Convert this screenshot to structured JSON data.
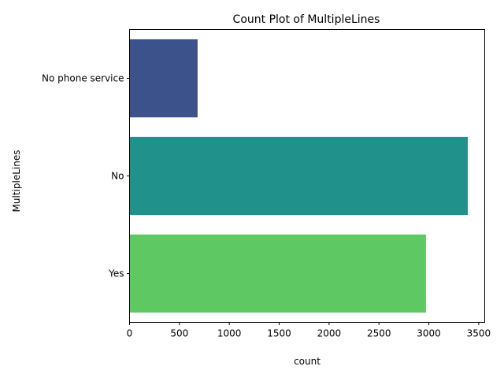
{
  "chart_data": {
    "type": "bar",
    "orientation": "horizontal",
    "title": "Count Plot of MultipleLines",
    "xlabel": "count",
    "ylabel": "MultipleLines",
    "categories": [
      "No phone service",
      "No",
      "Yes"
    ],
    "values": [
      682,
      3390,
      2971
    ],
    "colors": [
      "#3b528b",
      "#21918c",
      "#5ec962"
    ],
    "xlim": [
      0,
      3560
    ],
    "xticks": [
      0,
      500,
      1000,
      1500,
      2000,
      2500,
      3000,
      3500
    ],
    "xtick_labels": [
      "0",
      "500",
      "1000",
      "1500",
      "2000",
      "2500",
      "3000",
      "3500"
    ],
    "grid": false,
    "legend": "none"
  }
}
